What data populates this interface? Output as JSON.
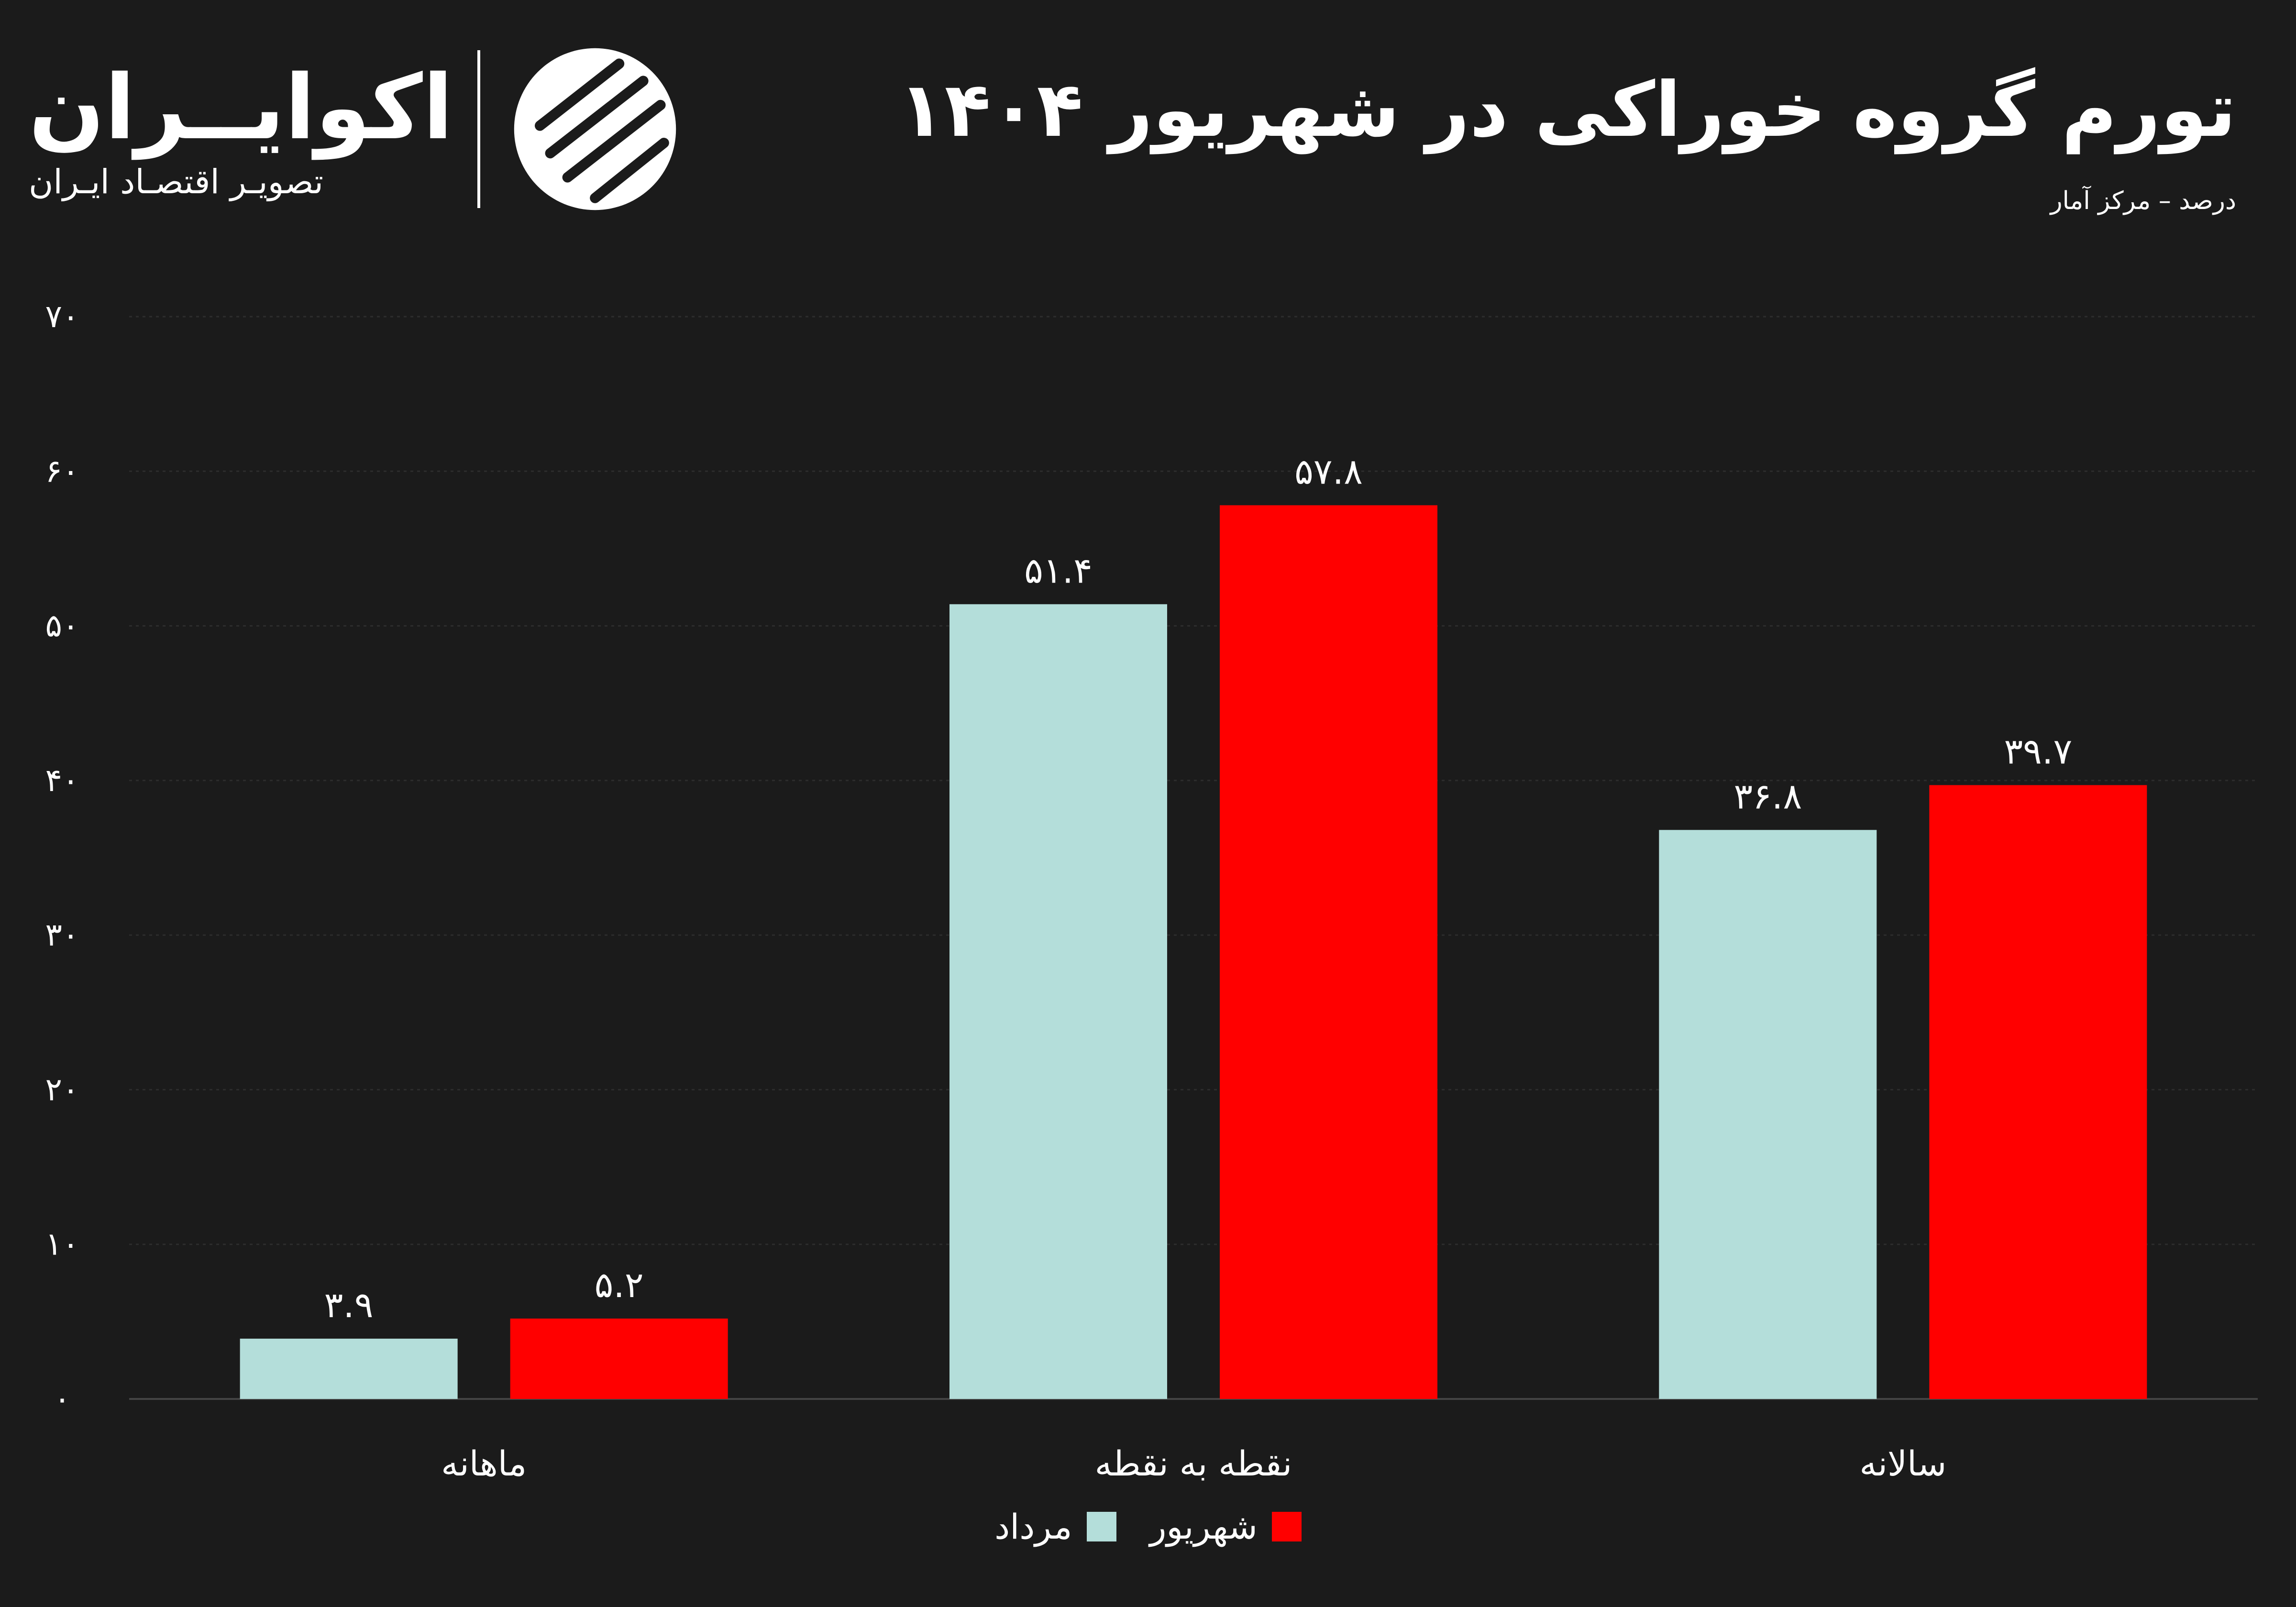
{
  "brand": {
    "name": "اکوایــران",
    "tagline": "تصویـر اقتصـاد ایـران"
  },
  "title": "تورم گروه خوراکی در شهریور ۱۴۰۴",
  "subtitle": "درصد – مرکز آمار",
  "colors": {
    "background": "#1b1b1b",
    "series_mordad": "#b4deda",
    "series_shahrivar": "#ff0000",
    "grid": "#2d2d2d",
    "text": "#ffffff"
  },
  "chart_data": {
    "type": "bar",
    "categories": [
      "ماهانه",
      "نقطه به نقطه",
      "سالانه"
    ],
    "series": [
      {
        "name": "مرداد",
        "values": [
          3.9,
          51.4,
          36.8
        ],
        "labels": [
          "۳.۹",
          "۵۱.۴",
          "۳۶.۸"
        ]
      },
      {
        "name": "شهریور",
        "values": [
          5.2,
          57.8,
          39.7
        ],
        "labels": [
          "۵.۲",
          "۵۷.۸",
          "۳۹.۷"
        ]
      }
    ],
    "ylim": [
      0,
      70
    ],
    "yticks": [
      0,
      10,
      20,
      30,
      40,
      50,
      60,
      70
    ],
    "ytick_labels": [
      "۰",
      "۱۰",
      "۲۰",
      "۳۰",
      "۴۰",
      "۵۰",
      "۶۰",
      "۷۰"
    ],
    "grid": true,
    "legend_position": "bottom-center",
    "title": "تورم گروه خوراکی در شهریور ۱۴۰۴",
    "xlabel": "",
    "ylabel": ""
  }
}
